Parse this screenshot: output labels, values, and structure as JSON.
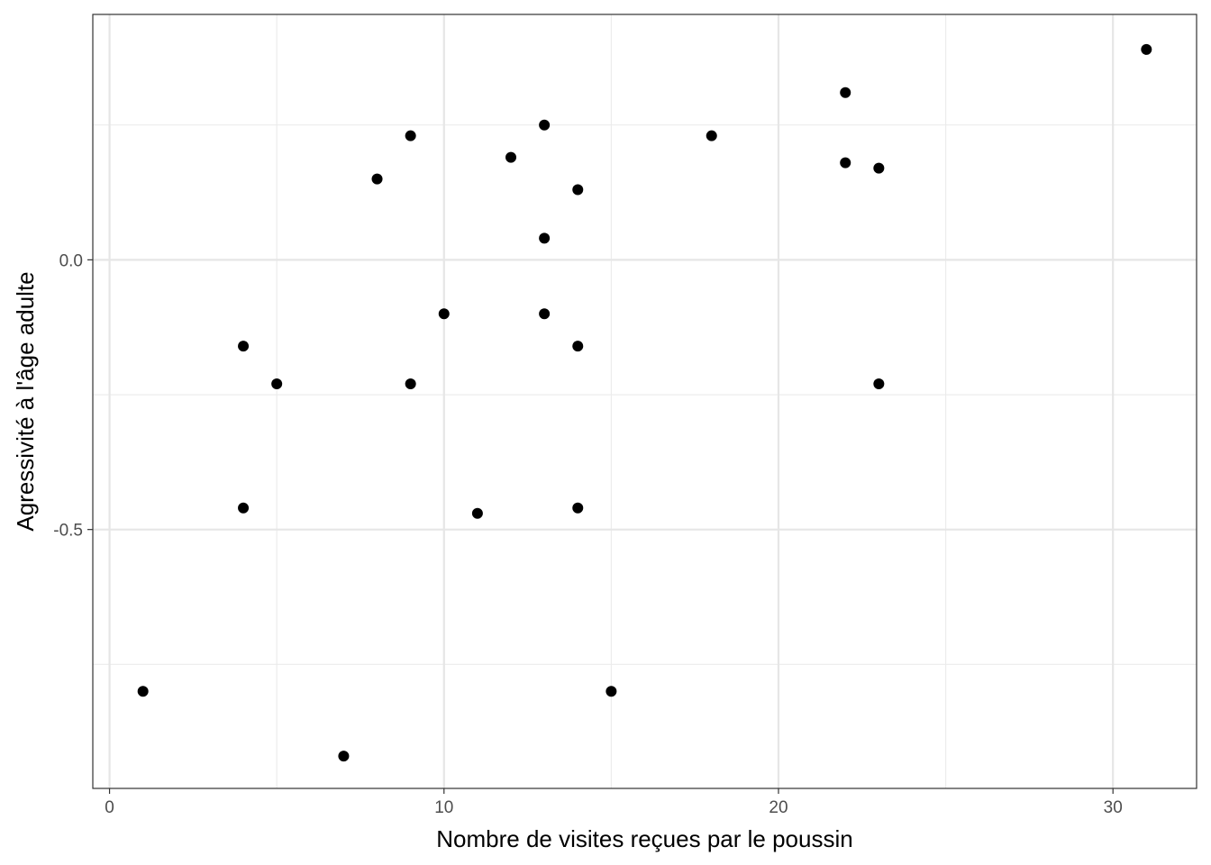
{
  "chart_data": {
    "type": "scatter",
    "title": "",
    "xlabel": "Nombre de visites reçues par le poussin",
    "ylabel": "Agressivité à l'âge adulte",
    "xlim": [
      -0.5,
      32.5
    ],
    "ylim": [
      -0.98,
      0.455
    ],
    "x_ticks": [
      0,
      10,
      20,
      30
    ],
    "x_tick_labels": [
      "0",
      "10",
      "20",
      "30"
    ],
    "x_minor_ticks": [
      5,
      15,
      25
    ],
    "y_ticks": [
      0.0,
      -0.5
    ],
    "y_tick_labels": [
      "0.0",
      "-0.5"
    ],
    "y_minor_ticks": [
      0.25,
      -0.25,
      -0.75
    ],
    "grid": true,
    "legend": "none",
    "point_color": "#000000",
    "series": [
      {
        "points": [
          {
            "x": 1,
            "y": -0.8
          },
          {
            "x": 4,
            "y": -0.16
          },
          {
            "x": 4,
            "y": -0.46
          },
          {
            "x": 5,
            "y": -0.23
          },
          {
            "x": 7,
            "y": -0.92
          },
          {
            "x": 8,
            "y": 0.15
          },
          {
            "x": 9,
            "y": 0.23
          },
          {
            "x": 9,
            "y": -0.23
          },
          {
            "x": 10,
            "y": -0.1
          },
          {
            "x": 11,
            "y": -0.47
          },
          {
            "x": 12,
            "y": 0.19
          },
          {
            "x": 13,
            "y": 0.25
          },
          {
            "x": 13,
            "y": 0.04
          },
          {
            "x": 13,
            "y": -0.1
          },
          {
            "x": 14,
            "y": 0.13
          },
          {
            "x": 14,
            "y": -0.16
          },
          {
            "x": 14,
            "y": -0.46
          },
          {
            "x": 15,
            "y": -0.8
          },
          {
            "x": 18,
            "y": 0.23
          },
          {
            "x": 22,
            "y": 0.31
          },
          {
            "x": 22,
            "y": 0.18
          },
          {
            "x": 23,
            "y": 0.17
          },
          {
            "x": 23,
            "y": -0.23
          },
          {
            "x": 31,
            "y": 0.39
          }
        ]
      }
    ]
  }
}
